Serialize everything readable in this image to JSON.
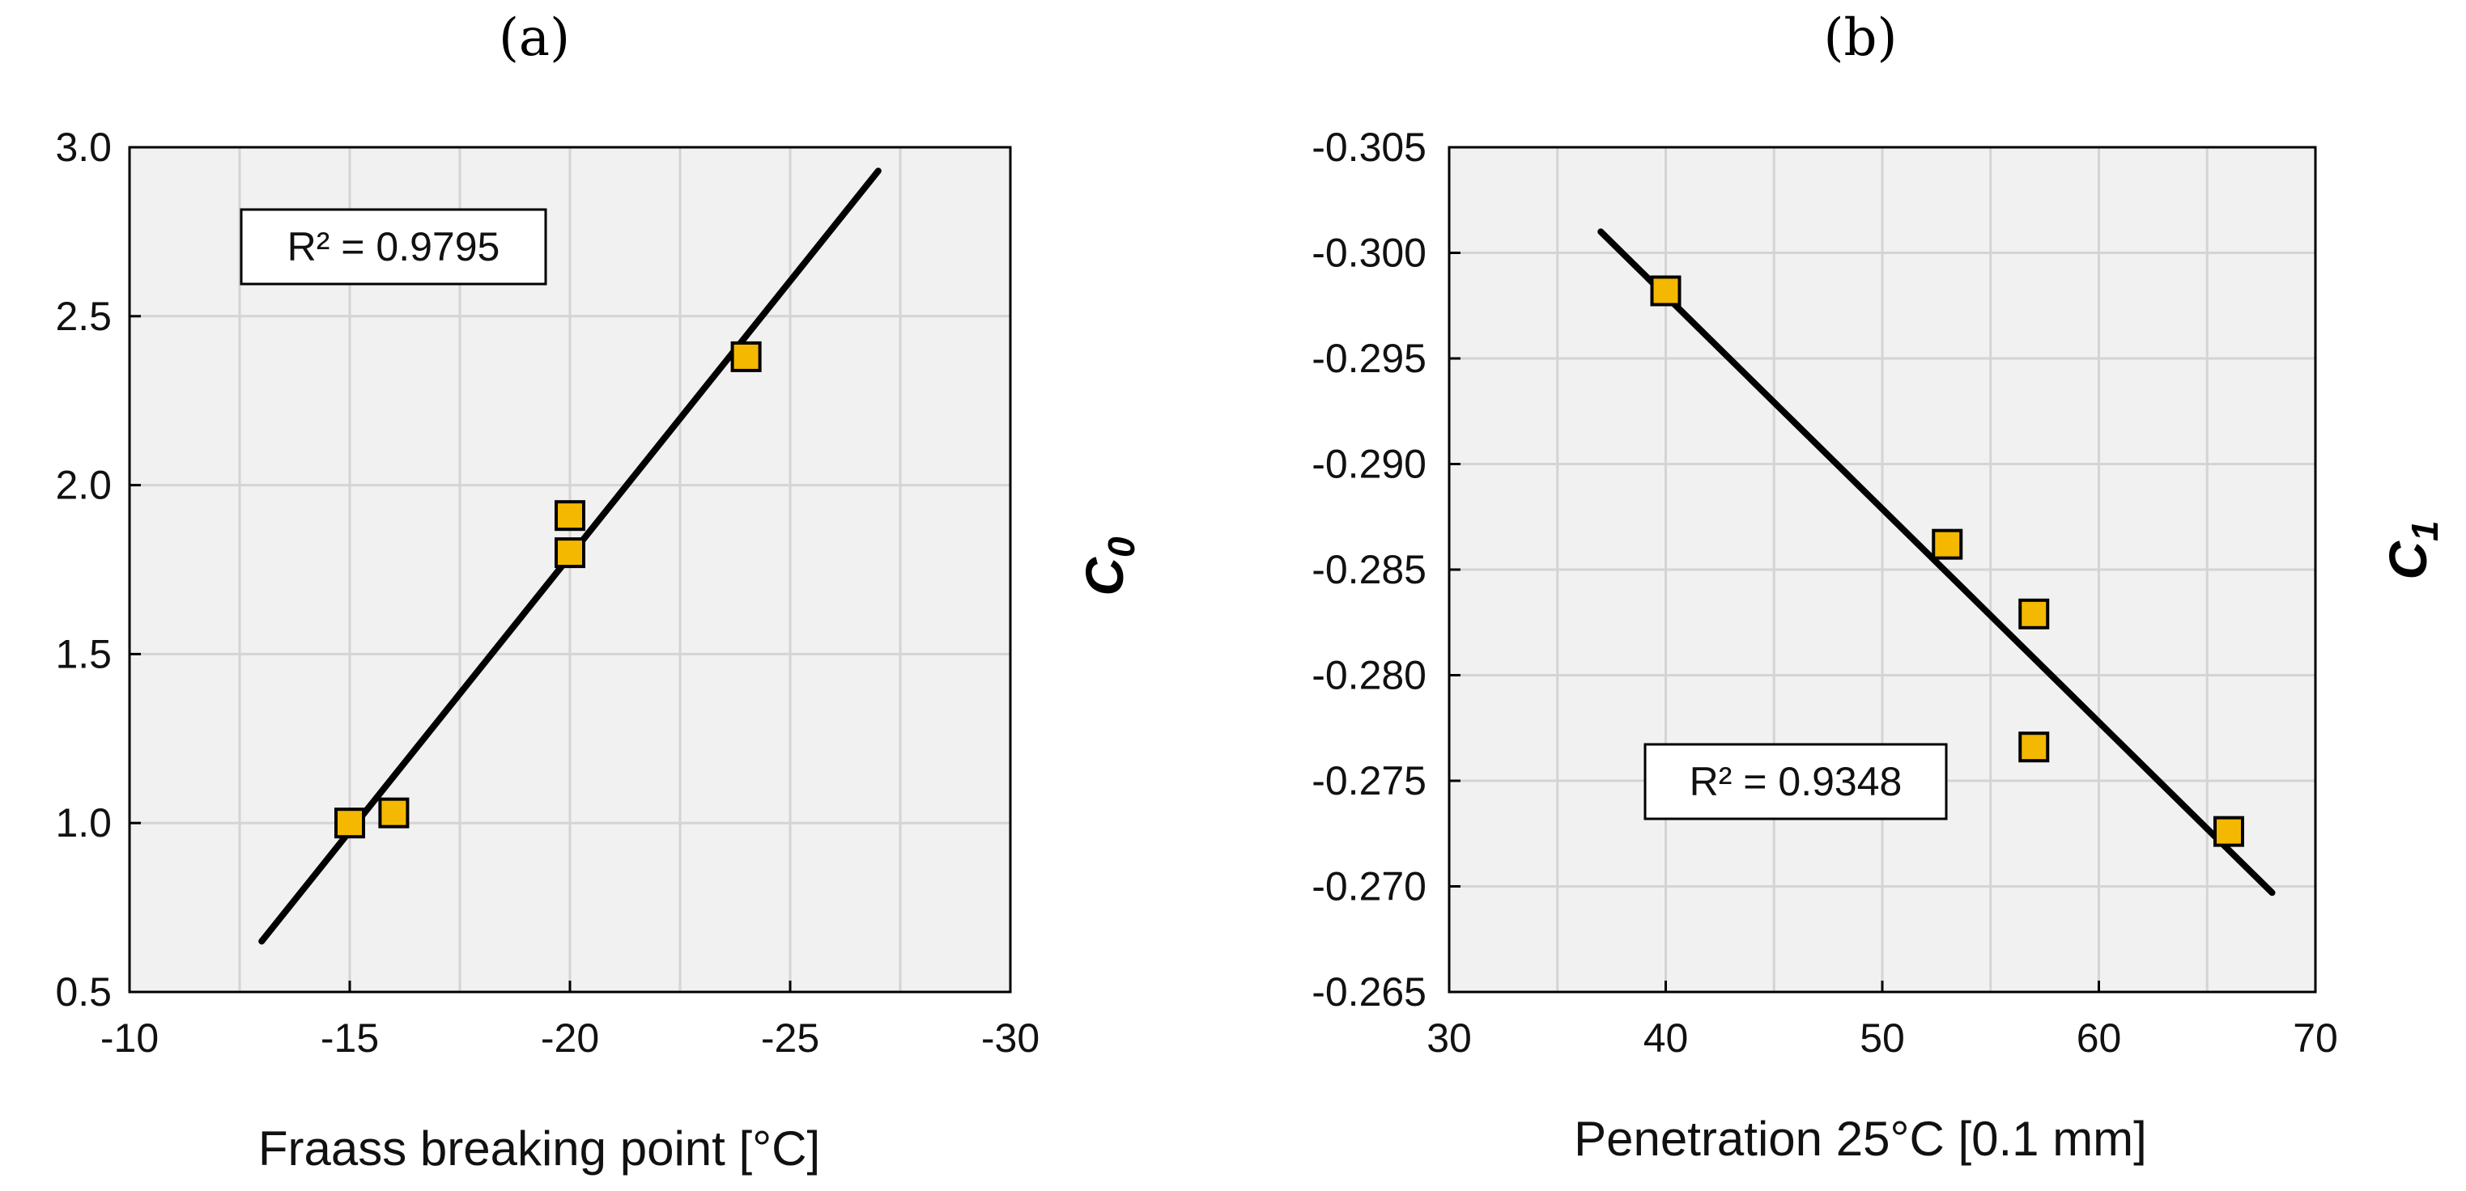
{
  "chart_data": [
    {
      "type": "scatter",
      "panel_label": "(a)",
      "xlabel": "Fraass breaking point [°C]",
      "ylabel": {
        "base": "C",
        "sub": "0"
      },
      "xlim": [
        -10,
        -30
      ],
      "ylim": [
        0.5,
        3.0
      ],
      "x_ticks": [
        -10,
        -15,
        -20,
        -25,
        -30
      ],
      "y_ticks": [
        0.5,
        1.0,
        1.5,
        2.0,
        2.5,
        3.0
      ],
      "x_tick_labels": [
        "-10",
        "-15",
        "-20",
        "-25",
        "-30"
      ],
      "y_tick_labels": [
        "0.5",
        "1.0",
        "1.5",
        "2.0",
        "2.5",
        "3.0"
      ],
      "grid": true,
      "points": {
        "x": [
          -15,
          -16,
          -20,
          -20,
          -24
        ],
        "y": [
          1.0,
          1.03,
          1.8,
          1.91,
          2.38
        ]
      },
      "trendline": {
        "x": [
          -13,
          -27
        ],
        "y": [
          0.65,
          2.93
        ]
      },
      "annotation": "R² = 0.9795",
      "marker_color": "#F5B800"
    },
    {
      "type": "scatter",
      "panel_label": "(b)",
      "xlabel": "Penetration 25°C [0.1 mm]",
      "ylabel": {
        "base": "C",
        "sub": "1"
      },
      "xlim": [
        30,
        70
      ],
      "ylim": [
        -0.265,
        -0.305
      ],
      "x_ticks": [
        30,
        40,
        50,
        60,
        70
      ],
      "y_ticks": [
        -0.265,
        -0.27,
        -0.275,
        -0.28,
        -0.285,
        -0.29,
        -0.295,
        -0.3,
        -0.305
      ],
      "x_tick_labels": [
        "30",
        "40",
        "50",
        "60",
        "70"
      ],
      "y_tick_labels": [
        "-0.265",
        "-0.270",
        "-0.275",
        "-0.280",
        "-0.285",
        "-0.290",
        "-0.295",
        "-0.300",
        "-0.305"
      ],
      "grid": true,
      "points": {
        "x": [
          40,
          53,
          57,
          57,
          66
        ],
        "y": [
          -0.2982,
          -0.2862,
          -0.2829,
          -0.2766,
          -0.2726
        ]
      },
      "trendline": {
        "x": [
          37,
          68
        ],
        "y": [
          -0.301,
          -0.2697
        ]
      },
      "annotation": "R² = 0.9348",
      "marker_color": "#F5B800"
    }
  ]
}
